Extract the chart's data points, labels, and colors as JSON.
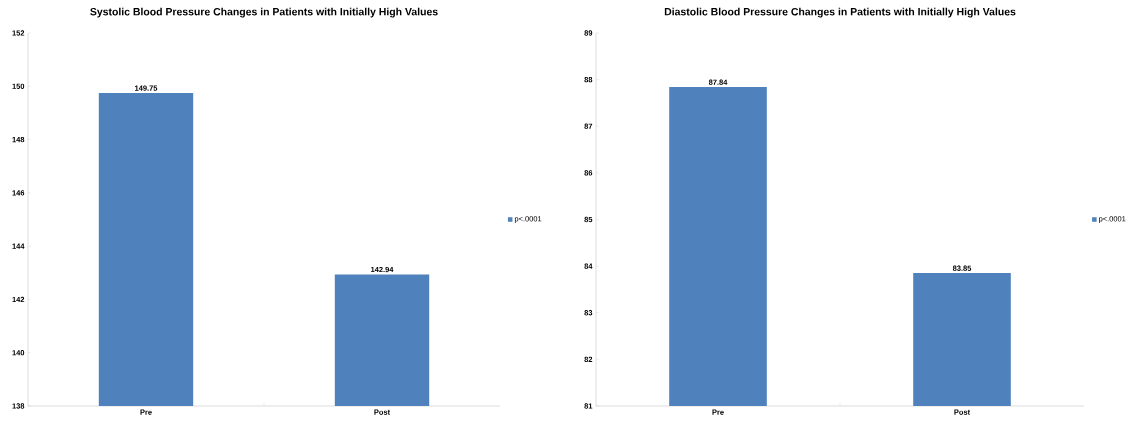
{
  "chart_data": [
    {
      "type": "bar",
      "title": "Systolic Blood Pressure Changes in Patients with Initially High Values",
      "categories": [
        "Pre",
        "Post"
      ],
      "series": [
        {
          "name": "p<.0001",
          "color": "#4f81bd",
          "values": [
            149.75,
            142.94
          ]
        }
      ],
      "ylim": [
        138,
        152
      ],
      "yticks": [
        138,
        140,
        142,
        144,
        146,
        148,
        150,
        152
      ],
      "data_labels": true,
      "legend": "right",
      "grid": false
    },
    {
      "type": "bar",
      "title": "Diastolic Blood Pressure Changes in Patients with Initially High Values",
      "categories": [
        "Pre",
        "Post"
      ],
      "series": [
        {
          "name": "p<.0001",
          "color": "#4f81bd",
          "values": [
            87.84,
            83.85
          ]
        }
      ],
      "ylim": [
        81,
        89
      ],
      "yticks": [
        81,
        82,
        83,
        84,
        85,
        86,
        87,
        88,
        89
      ],
      "data_labels": true,
      "legend": "right",
      "grid": false
    }
  ]
}
